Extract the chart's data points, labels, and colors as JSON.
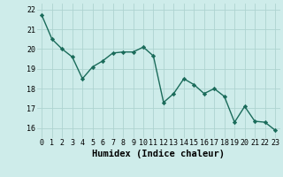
{
  "x": [
    0,
    1,
    2,
    3,
    4,
    5,
    6,
    7,
    8,
    9,
    10,
    11,
    12,
    13,
    14,
    15,
    16,
    17,
    18,
    19,
    20,
    21,
    22,
    23
  ],
  "y": [
    21.7,
    20.5,
    20.0,
    19.6,
    18.5,
    19.1,
    19.4,
    19.8,
    19.85,
    19.85,
    20.1,
    19.65,
    17.3,
    17.75,
    18.5,
    18.2,
    17.75,
    18.0,
    17.6,
    16.3,
    17.1,
    16.35,
    16.3,
    15.9
  ],
  "line_color": "#1a6b5a",
  "marker": "D",
  "marker_size": 2.2,
  "bg_color": "#ceecea",
  "grid_color": "#aed4d0",
  "xlabel": "Humidex (Indice chaleur)",
  "ylim": [
    15.5,
    22.3
  ],
  "xlim": [
    -0.5,
    23.5
  ],
  "yticks": [
    16,
    17,
    18,
    19,
    20,
    21,
    22
  ],
  "xticks": [
    0,
    1,
    2,
    3,
    4,
    5,
    6,
    7,
    8,
    9,
    10,
    11,
    12,
    13,
    14,
    15,
    16,
    17,
    18,
    19,
    20,
    21,
    22,
    23
  ],
  "xlabel_fontsize": 7.5,
  "tick_fontsize": 6.0,
  "line_width": 1.0
}
